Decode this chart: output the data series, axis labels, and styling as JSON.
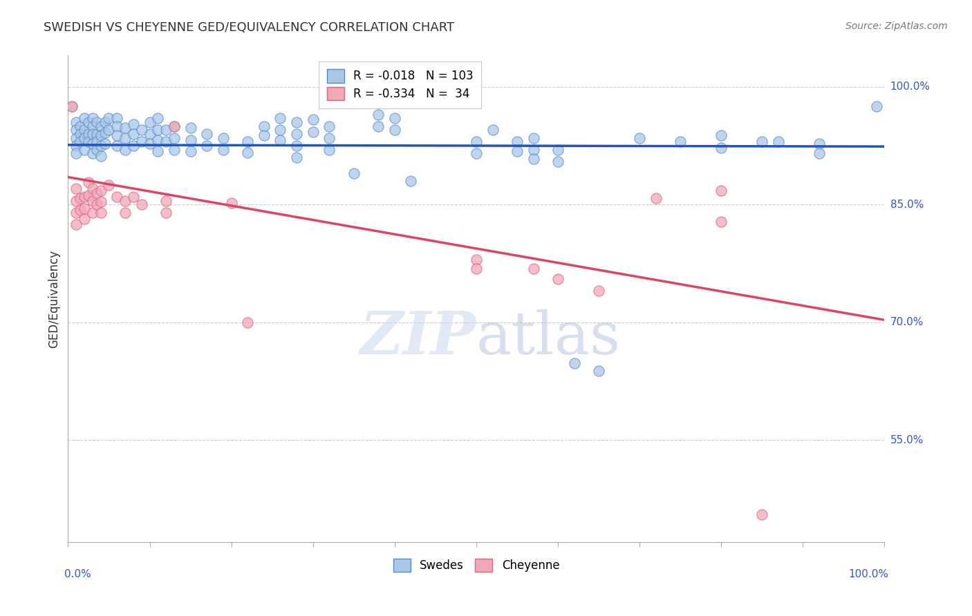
{
  "title": "SWEDISH VS CHEYENNE GED/EQUIVALENCY CORRELATION CHART",
  "source": "Source: ZipAtlas.com",
  "ylabel": "GED/Equivalency",
  "ytick_labels": [
    "100.0%",
    "85.0%",
    "70.0%",
    "55.0%"
  ],
  "ytick_values": [
    1.0,
    0.85,
    0.7,
    0.55
  ],
  "xlim": [
    0.0,
    1.0
  ],
  "ylim": [
    0.42,
    1.04
  ],
  "blue_R": -0.018,
  "blue_N": 103,
  "pink_R": -0.334,
  "pink_N": 34,
  "blue_color": "#a8c8e8",
  "pink_color": "#f0a8b8",
  "blue_edge_color": "#5588cc",
  "pink_edge_color": "#e06080",
  "blue_line_color": "#2255bb",
  "pink_line_color": "#dd4466",
  "background_color": "#ffffff",
  "grid_color": "#cccccc",
  "dot_size": 120,
  "blue_line_y0": 0.926,
  "blue_line_y1": 0.924,
  "pink_line_y0": 0.885,
  "pink_line_y1": 0.703,
  "blue_dots": [
    [
      0.005,
      0.975
    ],
    [
      0.01,
      0.955
    ],
    [
      0.01,
      0.945
    ],
    [
      0.01,
      0.935
    ],
    [
      0.01,
      0.925
    ],
    [
      0.01,
      0.915
    ],
    [
      0.015,
      0.95
    ],
    [
      0.015,
      0.94
    ],
    [
      0.015,
      0.93
    ],
    [
      0.02,
      0.96
    ],
    [
      0.02,
      0.945
    ],
    [
      0.02,
      0.935
    ],
    [
      0.02,
      0.92
    ],
    [
      0.025,
      0.955
    ],
    [
      0.025,
      0.94
    ],
    [
      0.025,
      0.93
    ],
    [
      0.03,
      0.96
    ],
    [
      0.03,
      0.95
    ],
    [
      0.03,
      0.94
    ],
    [
      0.03,
      0.928
    ],
    [
      0.03,
      0.915
    ],
    [
      0.035,
      0.955
    ],
    [
      0.035,
      0.94
    ],
    [
      0.035,
      0.93
    ],
    [
      0.035,
      0.92
    ],
    [
      0.04,
      0.95
    ],
    [
      0.04,
      0.938
    ],
    [
      0.04,
      0.925
    ],
    [
      0.04,
      0.912
    ],
    [
      0.045,
      0.955
    ],
    [
      0.045,
      0.942
    ],
    [
      0.045,
      0.928
    ],
    [
      0.05,
      0.96
    ],
    [
      0.05,
      0.945
    ],
    [
      0.06,
      0.96
    ],
    [
      0.06,
      0.95
    ],
    [
      0.06,
      0.938
    ],
    [
      0.06,
      0.925
    ],
    [
      0.07,
      0.948
    ],
    [
      0.07,
      0.935
    ],
    [
      0.07,
      0.92
    ],
    [
      0.08,
      0.952
    ],
    [
      0.08,
      0.94
    ],
    [
      0.08,
      0.925
    ],
    [
      0.09,
      0.945
    ],
    [
      0.09,
      0.93
    ],
    [
      0.1,
      0.955
    ],
    [
      0.1,
      0.94
    ],
    [
      0.1,
      0.928
    ],
    [
      0.11,
      0.96
    ],
    [
      0.11,
      0.945
    ],
    [
      0.11,
      0.932
    ],
    [
      0.11,
      0.918
    ],
    [
      0.12,
      0.945
    ],
    [
      0.12,
      0.93
    ],
    [
      0.13,
      0.95
    ],
    [
      0.13,
      0.935
    ],
    [
      0.13,
      0.92
    ],
    [
      0.15,
      0.948
    ],
    [
      0.15,
      0.932
    ],
    [
      0.15,
      0.918
    ],
    [
      0.17,
      0.94
    ],
    [
      0.17,
      0.925
    ],
    [
      0.19,
      0.935
    ],
    [
      0.19,
      0.92
    ],
    [
      0.22,
      0.93
    ],
    [
      0.22,
      0.916
    ],
    [
      0.24,
      0.95
    ],
    [
      0.24,
      0.938
    ],
    [
      0.26,
      0.96
    ],
    [
      0.26,
      0.945
    ],
    [
      0.26,
      0.932
    ],
    [
      0.28,
      0.955
    ],
    [
      0.28,
      0.94
    ],
    [
      0.28,
      0.925
    ],
    [
      0.28,
      0.91
    ],
    [
      0.3,
      0.958
    ],
    [
      0.3,
      0.943
    ],
    [
      0.32,
      0.95
    ],
    [
      0.32,
      0.935
    ],
    [
      0.32,
      0.92
    ],
    [
      0.35,
      0.89
    ],
    [
      0.38,
      0.965
    ],
    [
      0.38,
      0.95
    ],
    [
      0.4,
      0.96
    ],
    [
      0.4,
      0.945
    ],
    [
      0.42,
      0.88
    ],
    [
      0.5,
      0.93
    ],
    [
      0.5,
      0.915
    ],
    [
      0.52,
      0.945
    ],
    [
      0.55,
      0.93
    ],
    [
      0.55,
      0.918
    ],
    [
      0.57,
      0.935
    ],
    [
      0.57,
      0.92
    ],
    [
      0.57,
      0.908
    ],
    [
      0.6,
      0.92
    ],
    [
      0.6,
      0.905
    ],
    [
      0.62,
      0.648
    ],
    [
      0.65,
      0.638
    ],
    [
      0.7,
      0.935
    ],
    [
      0.75,
      0.93
    ],
    [
      0.8,
      0.938
    ],
    [
      0.8,
      0.922
    ],
    [
      0.85,
      0.93
    ],
    [
      0.87,
      0.93
    ],
    [
      0.92,
      0.928
    ],
    [
      0.92,
      0.915
    ],
    [
      0.99,
      0.975
    ]
  ],
  "pink_dots": [
    [
      0.005,
      0.975
    ],
    [
      0.01,
      0.87
    ],
    [
      0.01,
      0.855
    ],
    [
      0.01,
      0.84
    ],
    [
      0.01,
      0.825
    ],
    [
      0.015,
      0.858
    ],
    [
      0.015,
      0.843
    ],
    [
      0.02,
      0.86
    ],
    [
      0.02,
      0.845
    ],
    [
      0.02,
      0.832
    ],
    [
      0.025,
      0.878
    ],
    [
      0.025,
      0.862
    ],
    [
      0.03,
      0.87
    ],
    [
      0.03,
      0.855
    ],
    [
      0.03,
      0.84
    ],
    [
      0.035,
      0.864
    ],
    [
      0.035,
      0.85
    ],
    [
      0.04,
      0.868
    ],
    [
      0.04,
      0.854
    ],
    [
      0.04,
      0.84
    ],
    [
      0.05,
      0.875
    ],
    [
      0.06,
      0.86
    ],
    [
      0.07,
      0.855
    ],
    [
      0.07,
      0.84
    ],
    [
      0.08,
      0.86
    ],
    [
      0.09,
      0.85
    ],
    [
      0.12,
      0.855
    ],
    [
      0.12,
      0.84
    ],
    [
      0.13,
      0.95
    ],
    [
      0.2,
      0.852
    ],
    [
      0.22,
      0.7
    ],
    [
      0.5,
      0.78
    ],
    [
      0.5,
      0.768
    ],
    [
      0.57,
      0.768
    ],
    [
      0.6,
      0.755
    ],
    [
      0.65,
      0.74
    ],
    [
      0.72,
      0.858
    ],
    [
      0.8,
      0.868
    ],
    [
      0.8,
      0.828
    ],
    [
      0.85,
      0.455
    ]
  ]
}
